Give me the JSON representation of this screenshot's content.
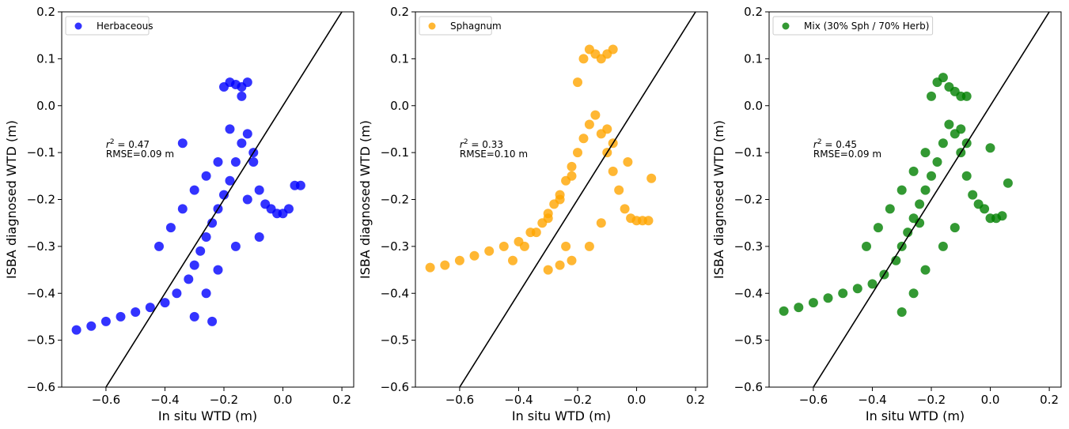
{
  "chart_data": [
    {
      "type": "scatter",
      "xlabel": "In situ WTD (m)",
      "ylabel": "ISBA diagnosed WTD (m)",
      "xlim": [
        -0.75,
        0.24
      ],
      "ylim": [
        -0.6,
        0.2
      ],
      "xticks": [
        -0.6,
        -0.4,
        -0.2,
        0.0,
        0.2
      ],
      "xtick_labels": [
        "−0.6",
        "−0.4",
        "−0.2",
        "0.0",
        "0.2"
      ],
      "yticks": [
        -0.6,
        -0.5,
        -0.4,
        -0.3,
        -0.2,
        -0.1,
        0.0,
        0.1,
        0.2
      ],
      "ytick_labels": [
        "−0.6",
        "−0.5",
        "−0.4",
        "−0.3",
        "−0.2",
        "−0.1",
        "0.0",
        "0.1",
        "0.2"
      ],
      "grid": false,
      "legend_position": "upper-left",
      "color": "#0000ff",
      "series": [
        {
          "name": "Herbaceous",
          "x": [
            -0.7,
            -0.65,
            -0.6,
            -0.55,
            -0.5,
            -0.45,
            -0.4,
            -0.36,
            -0.32,
            -0.3,
            -0.28,
            -0.26,
            -0.24,
            -0.22,
            -0.2,
            -0.18,
            -0.16,
            -0.14,
            -0.12,
            -0.1,
            -0.08,
            -0.06,
            -0.04,
            -0.02,
            0.0,
            0.02,
            0.04,
            0.06,
            -0.42,
            -0.38,
            -0.34,
            -0.3,
            -0.26,
            -0.22,
            -0.18,
            -0.14,
            -0.2,
            -0.18,
            -0.16,
            -0.14,
            -0.12,
            -0.16,
            -0.22,
            -0.26,
            -0.3,
            -0.34,
            -0.1,
            -0.08,
            -0.12,
            -0.24
          ],
          "y": [
            -0.478,
            -0.47,
            -0.46,
            -0.45,
            -0.44,
            -0.43,
            -0.42,
            -0.4,
            -0.37,
            -0.34,
            -0.31,
            -0.28,
            -0.25,
            -0.22,
            -0.19,
            -0.16,
            -0.12,
            -0.08,
            -0.06,
            -0.12,
            -0.18,
            -0.21,
            -0.22,
            -0.23,
            -0.23,
            -0.22,
            -0.17,
            -0.17,
            -0.3,
            -0.26,
            -0.22,
            -0.18,
            -0.15,
            -0.12,
            -0.05,
            0.02,
            0.04,
            0.05,
            0.045,
            0.04,
            0.05,
            -0.3,
            -0.35,
            -0.4,
            -0.45,
            -0.08,
            -0.1,
            -0.28,
            -0.2,
            -0.46
          ]
        }
      ],
      "reference_line": {
        "x": [
          -0.6,
          0.2
        ],
        "y": [
          -0.6,
          0.2
        ]
      },
      "annotation": {
        "r2_symbol": "r",
        "r2_sup": "2",
        "r2_value": " = 0.47",
        "rmse": "RMSE=0.09 m",
        "x": -0.6,
        "y": -0.09
      }
    },
    {
      "type": "scatter",
      "xlabel": "In situ WTD (m)",
      "ylabel": "ISBA diagnosed WTD (m)",
      "xlim": [
        -0.75,
        0.24
      ],
      "ylim": [
        -0.6,
        0.2
      ],
      "xticks": [
        -0.6,
        -0.4,
        -0.2,
        0.0,
        0.2
      ],
      "xtick_labels": [
        "−0.6",
        "−0.4",
        "−0.2",
        "0.0",
        "0.2"
      ],
      "yticks": [
        -0.6,
        -0.5,
        -0.4,
        -0.3,
        -0.2,
        -0.1,
        0.0,
        0.1,
        0.2
      ],
      "ytick_labels": [
        "−0.6",
        "−0.5",
        "−0.4",
        "−0.3",
        "−0.2",
        "−0.1",
        "0.0",
        "0.1",
        "0.2"
      ],
      "grid": false,
      "legend_position": "upper-left",
      "color": "#ffa500",
      "series": [
        {
          "name": "Sphagnum",
          "x": [
            -0.7,
            -0.65,
            -0.6,
            -0.55,
            -0.5,
            -0.45,
            -0.4,
            -0.36,
            -0.32,
            -0.3,
            -0.28,
            -0.26,
            -0.24,
            -0.22,
            -0.2,
            -0.18,
            -0.16,
            -0.14,
            -0.12,
            -0.1,
            -0.08,
            -0.06,
            -0.04,
            -0.02,
            0.0,
            0.02,
            0.04,
            0.05,
            -0.42,
            -0.38,
            -0.34,
            -0.3,
            -0.26,
            -0.22,
            -0.2,
            -0.18,
            -0.16,
            -0.14,
            -0.12,
            -0.1,
            -0.08,
            -0.16,
            -0.22,
            -0.26,
            -0.3,
            -0.1,
            -0.08,
            -0.12,
            -0.24,
            -0.03
          ],
          "y": [
            -0.345,
            -0.34,
            -0.33,
            -0.32,
            -0.31,
            -0.3,
            -0.29,
            -0.27,
            -0.25,
            -0.23,
            -0.21,
            -0.19,
            -0.16,
            -0.13,
            -0.1,
            -0.07,
            -0.04,
            -0.02,
            -0.06,
            -0.1,
            -0.14,
            -0.18,
            -0.22,
            -0.24,
            -0.245,
            -0.245,
            -0.245,
            -0.155,
            -0.33,
            -0.3,
            -0.27,
            -0.24,
            -0.2,
            -0.15,
            0.05,
            0.1,
            0.12,
            0.11,
            0.1,
            0.11,
            0.12,
            -0.3,
            -0.33,
            -0.34,
            -0.35,
            -0.05,
            -0.08,
            -0.25,
            -0.3,
            -0.12
          ]
        }
      ],
      "reference_line": {
        "x": [
          -0.6,
          0.2
        ],
        "y": [
          -0.6,
          0.2
        ]
      },
      "annotation": {
        "r2_symbol": "r",
        "r2_sup": "2",
        "r2_value": " = 0.33",
        "rmse": "RMSE=0.10 m",
        "x": -0.6,
        "y": -0.09
      }
    },
    {
      "type": "scatter",
      "xlabel": "In situ WTD (m)",
      "ylabel": "ISBA diagnosed WTD (m)",
      "xlim": [
        -0.75,
        0.24
      ],
      "ylim": [
        -0.6,
        0.2
      ],
      "xticks": [
        -0.6,
        -0.4,
        -0.2,
        0.0,
        0.2
      ],
      "xtick_labels": [
        "−0.6",
        "−0.4",
        "−0.2",
        "0.0",
        "0.2"
      ],
      "yticks": [
        -0.6,
        -0.5,
        -0.4,
        -0.3,
        -0.2,
        -0.1,
        0.0,
        0.1,
        0.2
      ],
      "ytick_labels": [
        "−0.6",
        "−0.5",
        "−0.4",
        "−0.3",
        "−0.2",
        "−0.1",
        "0.0",
        "0.1",
        "0.2"
      ],
      "grid": false,
      "legend_position": "upper-left",
      "color": "#008000",
      "series": [
        {
          "name": "Mix (30% Sph / 70% Herb)",
          "x": [
            -0.7,
            -0.65,
            -0.6,
            -0.55,
            -0.5,
            -0.45,
            -0.4,
            -0.36,
            -0.32,
            -0.3,
            -0.28,
            -0.26,
            -0.24,
            -0.22,
            -0.2,
            -0.18,
            -0.16,
            -0.14,
            -0.12,
            -0.1,
            -0.08,
            -0.06,
            -0.04,
            -0.02,
            0.0,
            0.02,
            0.04,
            0.06,
            -0.42,
            -0.38,
            -0.34,
            -0.3,
            -0.26,
            -0.22,
            -0.2,
            -0.18,
            -0.16,
            -0.14,
            -0.12,
            -0.1,
            -0.08,
            -0.16,
            -0.22,
            -0.26,
            -0.3,
            -0.1,
            -0.08,
            -0.12,
            -0.24,
            0.0
          ],
          "y": [
            -0.438,
            -0.43,
            -0.42,
            -0.41,
            -0.4,
            -0.39,
            -0.38,
            -0.36,
            -0.33,
            -0.3,
            -0.27,
            -0.24,
            -0.21,
            -0.18,
            -0.15,
            -0.12,
            -0.08,
            -0.04,
            -0.06,
            -0.1,
            -0.15,
            -0.19,
            -0.21,
            -0.22,
            -0.24,
            -0.24,
            -0.235,
            -0.165,
            -0.3,
            -0.26,
            -0.22,
            -0.18,
            -0.14,
            -0.1,
            0.02,
            0.05,
            0.06,
            0.04,
            0.03,
            0.02,
            0.02,
            -0.3,
            -0.35,
            -0.4,
            -0.44,
            -0.05,
            -0.08,
            -0.26,
            -0.25,
            -0.09
          ]
        }
      ],
      "reference_line": {
        "x": [
          -0.6,
          0.2
        ],
        "y": [
          -0.6,
          0.2
        ]
      },
      "annotation": {
        "r2_symbol": "r",
        "r2_sup": "2",
        "r2_value": " = 0.45",
        "rmse": "RMSE=0.09 m",
        "x": -0.6,
        "y": -0.09
      }
    }
  ]
}
